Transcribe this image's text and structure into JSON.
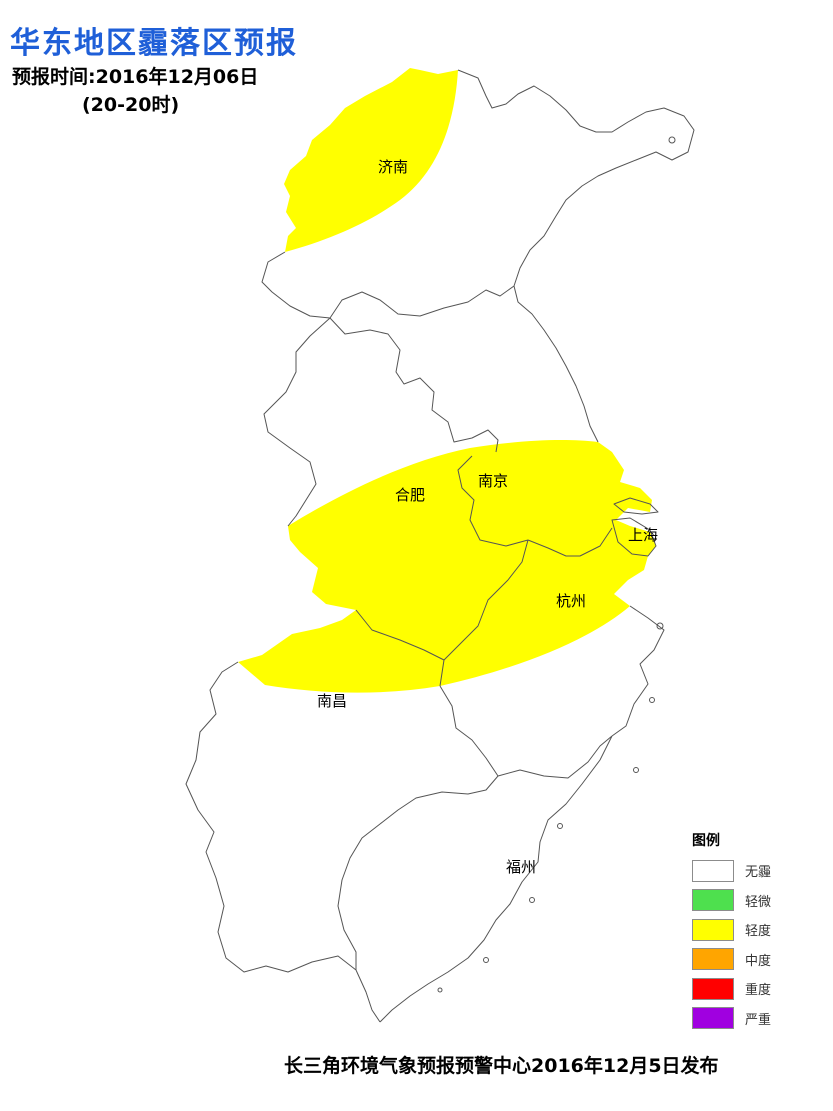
{
  "title": "华东地区霾落区预报",
  "forecast_time": "预报时间:2016年12月06日",
  "forecast_range": "(20-20时)",
  "cities": {
    "jinan": "济南",
    "nanjing": "南京",
    "hefei": "合肥",
    "shanghai": "上海",
    "hangzhou": "杭州",
    "nanchang": "南昌",
    "fuzhou": "福州"
  },
  "legend": {
    "title": "图例",
    "items": [
      {
        "label": "无霾",
        "color": "#ffffff"
      },
      {
        "label": "轻微",
        "color": "#4ee04e"
      },
      {
        "label": "轻度",
        "color": "#ffff00"
      },
      {
        "label": "中度",
        "color": "#ffa500"
      },
      {
        "label": "重度",
        "color": "#ff0000"
      },
      {
        "label": "严重",
        "color": "#a000e0"
      }
    ]
  },
  "footer": "长三角环境气象预报预警中心2016年12月5日发布",
  "colors": {
    "haze_light": "#ffff00",
    "boundary": "#555555",
    "title": "#1f5fd8"
  }
}
